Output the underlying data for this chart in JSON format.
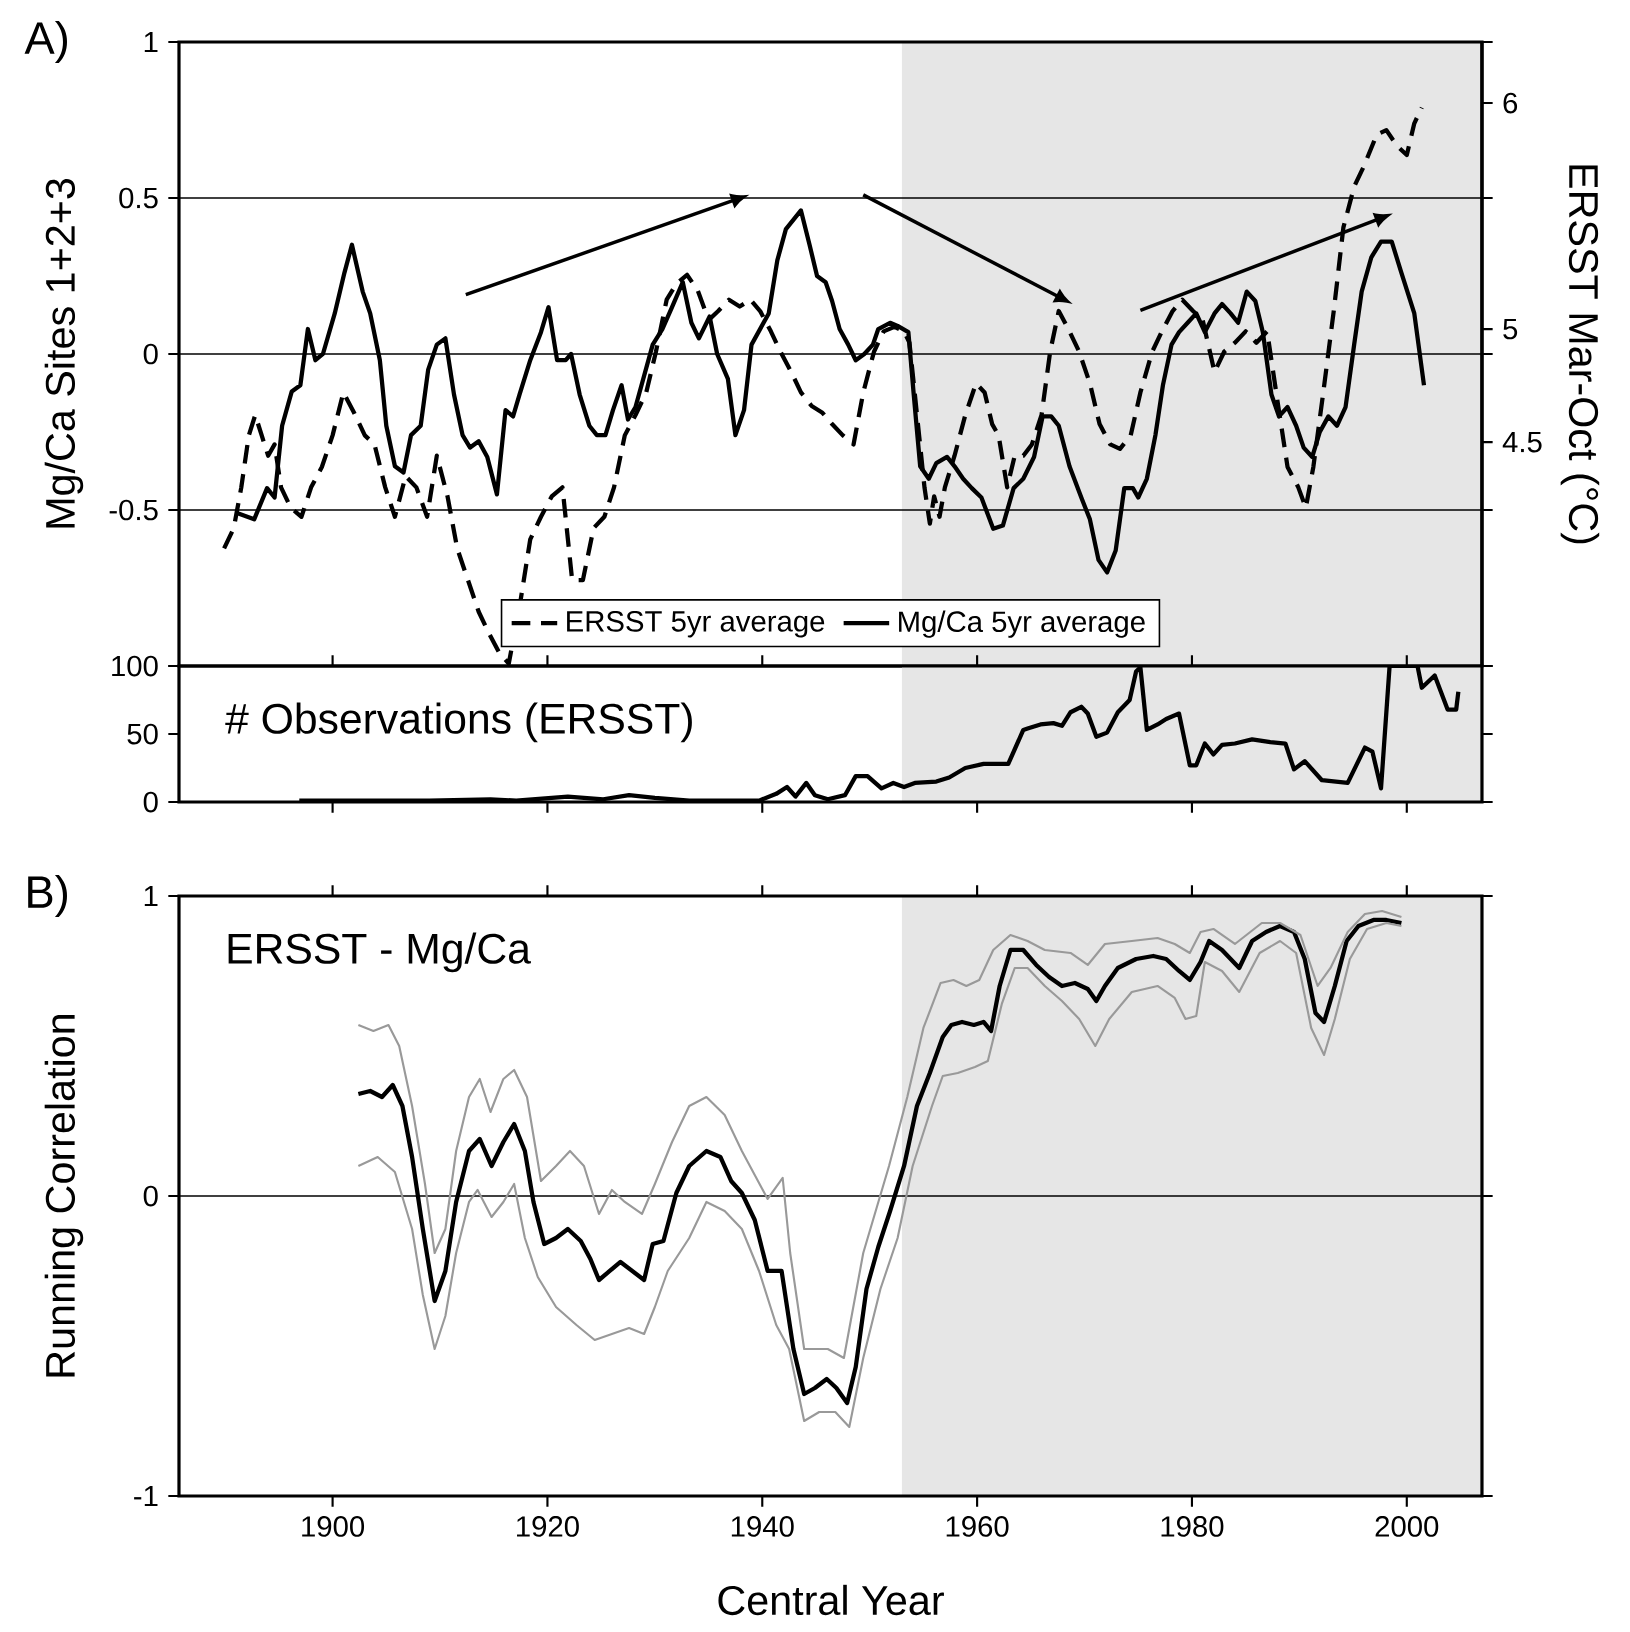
{
  "chart_data": [
    {
      "type": "line",
      "ylabel": "Mg/Ca Sites 1+2+3",
      "y2label": "ERSST Mar-Oct (°C)",
      "annotations": [
        "A)"
      ],
      "xlim": [
        1885.7,
        2007
      ],
      "ylim": [
        -1,
        1
      ],
      "yticks": [
        {
          "value": -1,
          "label": null
        },
        -0.5,
        0,
        0.5,
        1
      ],
      "y2lim": [
        3.51,
        6.27
      ],
      "y2ticks": [
        4.5,
        5,
        6
      ],
      "tick_labels": "y",
      "grid": "y",
      "legend": "bottom",
      "bands": [
        {
          "axis": "x",
          "from": 1953,
          "to": 2007,
          "color": "#e6e6e6"
        }
      ],
      "series": [
        {
          "name": "ERSST 5yr average",
          "color": "#000000",
          "axis": "y2",
          "line_style": "dashed",
          "x": [
            1889.9,
            1890.8,
            1891.5,
            1892.2,
            1892.8,
            1893.4,
            1894.0,
            1894.6,
            1895.2,
            1896.1,
            1897.1,
            1898.0,
            1899.0,
            1900.0,
            1901.0,
            1902.0,
            1903.0,
            1903.9,
            1904.9,
            1905.8,
            1906.8,
            1907.8,
            1908.8,
            1909.7,
            1910.7,
            1911.6,
            1912.6,
            1913.6,
            1914.5,
            1915.5,
            1916.4,
            1917.5,
            1918.4,
            1919.4,
            1920.4,
            1921.4,
            1922.3,
            1923.3,
            1924.3,
            1925.3,
            1926.2,
            1927.2,
            1928.2,
            1929.2,
            1930.1,
            1931.1,
            1932.0,
            1933.0,
            1934.0,
            1935.0,
            1935.9,
            1936.9,
            1937.9,
            1938.9,
            1939.8,
            1940.8,
            1941.7,
            1942.7,
            1943.6,
            1944.6,
            1945.6,
            1946.5,
            1947.5,
            1948.5,
            1949.4,
            1950.4,
            1951.3,
            1952.3,
            1953.2,
            1953.7,
            1954.1,
            1954.6,
            1955.1,
            1955.6,
            1956.0,
            1956.5,
            1957.0,
            1957.9,
            1958.9,
            1959.9,
            1960.7,
            1961.4,
            1962.0,
            1962.8,
            1963.5,
            1964.3,
            1965.1,
            1966.0,
            1966.8,
            1967.6,
            1968.6,
            1969.5,
            1970.5,
            1971.4,
            1972.4,
            1973.3,
            1974.3,
            1975.2,
            1976.3,
            1977.2,
            1978.2,
            1979.1,
            1980.1,
            1981.0,
            1982.1,
            1983.0,
            1984.0,
            1985.0,
            1986.0,
            1987.0,
            1988.0,
            1988.9,
            1989.9,
            1990.6,
            1991.3,
            1992.2,
            1993.2,
            1994.1,
            1995.1,
            1996.0,
            1997.2,
            1998.1,
            1999.1,
            2000.0,
            2000.7,
            2001.4
          ],
          "values": [
            4.03,
            4.12,
            4.3,
            4.53,
            4.62,
            4.53,
            4.44,
            4.49,
            4.3,
            4.21,
            4.17,
            4.3,
            4.39,
            4.53,
            4.72,
            4.63,
            4.53,
            4.49,
            4.3,
            4.17,
            4.35,
            4.3,
            4.17,
            4.44,
            4.26,
            4.03,
            3.89,
            3.75,
            3.66,
            3.57,
            3.52,
            3.8,
            4.07,
            4.17,
            4.26,
            4.3,
            3.89,
            3.89,
            4.12,
            4.17,
            4.3,
            4.53,
            4.62,
            4.72,
            4.9,
            5.13,
            5.2,
            5.24,
            5.17,
            5.04,
            5.08,
            5.13,
            5.1,
            5.13,
            5.08,
            4.99,
            4.9,
            4.81,
            4.72,
            4.66,
            4.63,
            4.58,
            4.53,
            4.49,
            4.72,
            4.9,
            4.99,
            5.01,
            4.99,
            4.94,
            4.76,
            4.53,
            4.3,
            4.14,
            4.26,
            4.17,
            4.3,
            4.44,
            4.62,
            4.76,
            4.72,
            4.58,
            4.53,
            4.3,
            4.44,
            4.44,
            4.49,
            4.62,
            4.9,
            5.08,
            4.99,
            4.9,
            4.76,
            4.58,
            4.49,
            4.47,
            4.53,
            4.72,
            4.9,
            4.99,
            5.08,
            5.13,
            5.08,
            5.04,
            4.81,
            4.9,
            4.94,
            4.99,
            4.94,
            4.99,
            4.67,
            4.39,
            4.3,
            4.21,
            4.39,
            4.71,
            5.08,
            5.45,
            5.63,
            5.72,
            5.86,
            5.88,
            5.81,
            5.77,
            5.91,
            5.98
          ]
        },
        {
          "name": "Mg/Ca 5yr average",
          "color": "#000000",
          "line_style": "solid",
          "x": [
            1891.1,
            1892.7,
            1893.9,
            1894.6,
            1895.3,
            1896.2,
            1897.0,
            1897.7,
            1898.4,
            1899.1,
            1900.2,
            1901.1,
            1901.8,
            1902.8,
            1903.5,
            1904.4,
            1905.0,
            1905.8,
            1906.6,
            1907.3,
            1908.2,
            1908.9,
            1909.7,
            1910.5,
            1911.3,
            1912.1,
            1912.8,
            1913.6,
            1914.4,
            1915.3,
            1916.1,
            1916.8,
            1917.4,
            1918.4,
            1919.4,
            1920.1,
            1920.9,
            1921.7,
            1922.2,
            1923.0,
            1923.9,
            1924.6,
            1925.4,
            1926.1,
            1926.9,
            1927.5,
            1928.2,
            1929.0,
            1929.8,
            1930.7,
            1931.6,
            1932.6,
            1933.4,
            1934.1,
            1935.1,
            1935.8,
            1936.8,
            1937.5,
            1938.3,
            1939.0,
            1939.8,
            1940.6,
            1941.4,
            1942.2,
            1943.6,
            1944.4,
            1945.1,
            1945.9,
            1946.5,
            1947.2,
            1948.0,
            1948.7,
            1949.5,
            1950.3,
            1950.8,
            1951.9,
            1952.6,
            1953.6,
            1954.1,
            1954.7,
            1955.5,
            1956.2,
            1957.2,
            1957.9,
            1958.7,
            1959.5,
            1960.4,
            1961.5,
            1962.4,
            1963.4,
            1964.3,
            1965.3,
            1966.1,
            1966.9,
            1967.6,
            1968.6,
            1969.7,
            1970.5,
            1971.3,
            1972.1,
            1972.9,
            1973.7,
            1974.5,
            1975.0,
            1975.8,
            1976.6,
            1977.3,
            1978.1,
            1978.8,
            1979.6,
            1980.4,
            1981.2,
            1982.1,
            1982.8,
            1983.6,
            1984.3,
            1985.1,
            1985.9,
            1986.6,
            1987.4,
            1988.1,
            1988.9,
            1989.7,
            1990.4,
            1991.2,
            1991.9,
            1992.7,
            1993.5,
            1994.3,
            1995.1,
            1995.8,
            1996.7,
            1997.6,
            1998.6,
            1999.5,
            2000.7,
            2001.6
          ],
          "values": [
            -0.51,
            -0.53,
            -0.43,
            -0.46,
            -0.23,
            -0.12,
            -0.1,
            0.08,
            -0.02,
            0.0,
            0.13,
            0.26,
            0.35,
            0.2,
            0.13,
            -0.02,
            -0.23,
            -0.36,
            -0.38,
            -0.26,
            -0.23,
            -0.05,
            0.03,
            0.05,
            -0.13,
            -0.26,
            -0.3,
            -0.28,
            -0.33,
            -0.45,
            -0.18,
            -0.2,
            -0.13,
            -0.02,
            0.07,
            0.15,
            -0.02,
            -0.02,
            0.0,
            -0.13,
            -0.23,
            -0.26,
            -0.26,
            -0.18,
            -0.1,
            -0.21,
            -0.17,
            -0.07,
            0.03,
            0.08,
            0.15,
            0.23,
            0.1,
            0.05,
            0.12,
            0.0,
            -0.08,
            -0.26,
            -0.18,
            0.03,
            0.08,
            0.13,
            0.3,
            0.4,
            0.46,
            0.35,
            0.25,
            0.23,
            0.17,
            0.08,
            0.03,
            -0.02,
            0.0,
            0.03,
            0.08,
            0.1,
            0.09,
            0.07,
            -0.13,
            -0.36,
            -0.4,
            -0.35,
            -0.33,
            -0.36,
            -0.4,
            -0.43,
            -0.46,
            -0.56,
            -0.55,
            -0.43,
            -0.4,
            -0.33,
            -0.2,
            -0.2,
            -0.23,
            -0.36,
            -0.46,
            -0.53,
            -0.66,
            -0.7,
            -0.63,
            -0.43,
            -0.43,
            -0.46,
            -0.4,
            -0.26,
            -0.1,
            0.03,
            0.07,
            0.1,
            0.13,
            0.07,
            0.13,
            0.16,
            0.13,
            0.1,
            0.2,
            0.17,
            0.07,
            -0.13,
            -0.2,
            -0.17,
            -0.23,
            -0.3,
            -0.33,
            -0.25,
            -0.2,
            -0.23,
            -0.17,
            0.03,
            0.2,
            0.31,
            0.36,
            0.36,
            0.26,
            0.13,
            -0.1
          ]
        }
      ]
    },
    {
      "type": "line",
      "title": "# Observations (ERSST)",
      "xlim": [
        1885.7,
        2007
      ],
      "xticks": [
        1900,
        1920,
        1940,
        1960,
        1980,
        2000
      ],
      "ylim": [
        0,
        100
      ],
      "yticks": [
        0,
        50,
        100
      ],
      "tick_labels": "y",
      "bands": [
        {
          "axis": "x",
          "from": 1953,
          "to": 2007,
          "color": "#e6e6e6"
        }
      ],
      "series": [
        {
          "color": "#000000",
          "x": [
            1896.9,
            1909.0,
            1914.7,
            1917.1,
            1921.9,
            1925.2,
            1927.6,
            1930.0,
            1933.2,
            1939.7,
            1941.3,
            1942.3,
            1943.1,
            1944.1,
            1944.9,
            1946.1,
            1947.7,
            1948.7,
            1949.8,
            1951.1,
            1952.2,
            1953.2,
            1954.2,
            1956.2,
            1957.4,
            1958.9,
            1960.6,
            1962.9,
            1964.3,
            1964.7,
            1965.9,
            1967.1,
            1967.9,
            1968.7,
            1969.7,
            1970.3,
            1971.1,
            1972.1,
            1973.1,
            1974.2,
            1974.8,
            1975.2,
            1975.8,
            1976.8,
            1977.6,
            1978.8,
            1979.8,
            1980.4,
            1981.2,
            1982.0,
            1982.8,
            1984.0,
            1985.6,
            1987.3,
            1988.7,
            1989.5,
            1990.5,
            1992.1,
            1994.5,
            1996.1,
            1996.8,
            1997.6,
            1998.4,
            2001.0,
            2001.4,
            2002.6,
            2003.8,
            2004.6,
            2004.8
          ],
          "values": [
            1,
            1,
            2,
            1,
            4,
            2,
            5,
            3,
            1,
            1,
            6,
            11,
            4,
            14,
            5,
            2,
            5,
            19,
            19,
            10,
            14,
            11,
            14,
            15,
            18,
            25,
            28,
            28,
            53,
            54,
            57,
            58,
            56,
            66,
            70,
            65,
            48,
            51,
            66,
            75,
            96,
            99,
            53,
            57,
            61,
            65,
            27,
            27,
            43,
            35,
            42,
            43,
            46,
            44,
            43,
            24,
            30,
            16,
            14,
            40,
            37,
            10,
            100,
            100,
            84,
            93,
            68,
            68,
            81
          ]
        }
      ]
    },
    {
      "type": "line",
      "title": "ERSST - Mg/Ca",
      "xlabel": "Central Year",
      "ylabel": "Running Correlation",
      "annotations": [
        "B)"
      ],
      "xlim": [
        1885.7,
        2007
      ],
      "xticks": [
        1900,
        1920,
        1940,
        1960,
        1980,
        2000
      ],
      "ylim": [
        -1,
        1
      ],
      "yticks": [
        -1,
        0,
        1
      ],
      "ref_lines": [
        {
          "axis": "y",
          "value": 0
        }
      ],
      "bands": [
        {
          "axis": "x",
          "from": 1953,
          "to": 2007,
          "color": "#e6e6e6"
        }
      ],
      "series": [
        {
          "color": "#000000",
          "x": [
            1902.4,
            1903.5,
            1904.6,
            1905.6,
            1906.5,
            1907.4,
            1908.4,
            1909.5,
            1910.5,
            1911.5,
            1912.7,
            1913.7,
            1914.8,
            1915.9,
            1916.9,
            1917.9,
            1918.7,
            1919.7,
            1920.8,
            1921.9,
            1923.1,
            1924.0,
            1924.8,
            1925.8,
            1926.8,
            1927.9,
            1929.0,
            1929.8,
            1930.8,
            1932.0,
            1933.2,
            1934.8,
            1936.1,
            1937.1,
            1938.1,
            1939.3,
            1940.5,
            1941.8,
            1942.9,
            1943.9,
            1944.9,
            1946.0,
            1946.9,
            1947.9,
            1948.7,
            1949.7,
            1950.8,
            1951.9,
            1953.2,
            1954.4,
            1955.6,
            1956.8,
            1957.6,
            1958.6,
            1959.7,
            1960.6,
            1961.3,
            1962.1,
            1963.1,
            1964.3,
            1965.5,
            1966.7,
            1967.9,
            1969.1,
            1970.3,
            1971.1,
            1971.9,
            1973.1,
            1974.8,
            1976.4,
            1977.6,
            1978.8,
            1979.8,
            1980.8,
            1981.6,
            1982.8,
            1984.4,
            1985.6,
            1986.9,
            1988.2,
            1989.5,
            1990.5,
            1991.5,
            1992.3,
            1993.3,
            1994.4,
            1995.5,
            1996.9,
            1998.1,
            1999.5
          ],
          "values": [
            0.34,
            0.35,
            0.33,
            0.37,
            0.3,
            0.13,
            -0.11,
            -0.35,
            -0.25,
            -0.02,
            0.15,
            0.19,
            0.1,
            0.18,
            0.24,
            0.15,
            -0.02,
            -0.16,
            -0.14,
            -0.11,
            -0.15,
            -0.21,
            -0.28,
            -0.25,
            -0.22,
            -0.25,
            -0.28,
            -0.16,
            -0.15,
            0.01,
            0.1,
            0.15,
            0.13,
            0.05,
            0.01,
            -0.08,
            -0.25,
            -0.25,
            -0.51,
            -0.66,
            -0.64,
            -0.61,
            -0.64,
            -0.69,
            -0.57,
            -0.31,
            -0.17,
            -0.05,
            0.1,
            0.3,
            0.41,
            0.53,
            0.57,
            0.58,
            0.57,
            0.58,
            0.55,
            0.7,
            0.82,
            0.82,
            0.77,
            0.73,
            0.7,
            0.71,
            0.69,
            0.65,
            0.7,
            0.76,
            0.79,
            0.8,
            0.79,
            0.75,
            0.72,
            0.78,
            0.85,
            0.82,
            0.76,
            0.85,
            0.88,
            0.9,
            0.88,
            0.79,
            0.61,
            0.58,
            0.7,
            0.85,
            0.9,
            0.92,
            0.92,
            0.91
          ]
        },
        {
          "color": "#999999",
          "x": [
            1902.4,
            1903.8,
            1905.2,
            1906.2,
            1907.4,
            1908.6,
            1909.5,
            1910.5,
            1911.5,
            1912.7,
            1913.7,
            1914.7,
            1915.9,
            1916.9,
            1918.1,
            1919.4,
            1920.8,
            1922.1,
            1923.4,
            1924.8,
            1926.0,
            1927.2,
            1928.8,
            1930.0,
            1931.6,
            1933.2,
            1934.8,
            1936.5,
            1938.1,
            1940.5,
            1941.9,
            1942.6,
            1943.9,
            1946.1,
            1947.6,
            1949.4,
            1951.8,
            1953.5,
            1955.0,
            1956.6,
            1957.8,
            1959.0,
            1960.2,
            1961.5,
            1963.1,
            1964.7,
            1966.3,
            1968.7,
            1970.3,
            1971.9,
            1974.4,
            1976.8,
            1978.4,
            1979.8,
            1980.8,
            1982.0,
            1984.0,
            1986.5,
            1988.2,
            1990.1,
            1991.7,
            1992.9,
            1994.5,
            1996.1,
            1997.7,
            1999.5
          ],
          "values": [
            0.57,
            0.55,
            0.57,
            0.5,
            0.3,
            0.04,
            -0.19,
            -0.11,
            0.15,
            0.33,
            0.39,
            0.28,
            0.39,
            0.42,
            0.33,
            0.05,
            0.1,
            0.15,
            0.1,
            -0.06,
            0.02,
            -0.02,
            -0.06,
            0.04,
            0.18,
            0.3,
            0.33,
            0.27,
            0.15,
            -0.01,
            0.06,
            -0.19,
            -0.51,
            -0.51,
            -0.54,
            -0.19,
            0.1,
            0.33,
            0.56,
            0.71,
            0.72,
            0.7,
            0.72,
            0.82,
            0.87,
            0.85,
            0.82,
            0.81,
            0.77,
            0.84,
            0.85,
            0.86,
            0.84,
            0.81,
            0.88,
            0.89,
            0.84,
            0.91,
            0.91,
            0.87,
            0.7,
            0.76,
            0.88,
            0.94,
            0.95,
            0.93
          ]
        },
        {
          "color": "#999999",
          "x": [
            1902.4,
            1904.2,
            1905.8,
            1907.4,
            1908.4,
            1909.5,
            1910.5,
            1911.5,
            1912.7,
            1913.5,
            1914.8,
            1915.9,
            1916.9,
            1917.9,
            1919.1,
            1920.8,
            1922.7,
            1924.4,
            1926.0,
            1927.6,
            1929.0,
            1930.0,
            1931.2,
            1933.2,
            1934.8,
            1936.5,
            1938.1,
            1939.7,
            1941.3,
            1942.5,
            1943.9,
            1945.3,
            1946.8,
            1948.1,
            1949.4,
            1951.0,
            1952.6,
            1954.0,
            1955.8,
            1956.8,
            1958.2,
            1959.8,
            1961.0,
            1962.3,
            1963.5,
            1964.7,
            1966.3,
            1967.9,
            1969.5,
            1971.0,
            1972.3,
            1974.4,
            1976.8,
            1978.4,
            1979.4,
            1980.4,
            1981.2,
            1982.8,
            1984.4,
            1986.3,
            1988.2,
            1989.7,
            1991.1,
            1992.3,
            1993.3,
            1994.7,
            1996.3,
            1998.1,
            1999.5
          ],
          "values": [
            0.1,
            0.13,
            0.08,
            -0.11,
            -0.33,
            -0.51,
            -0.4,
            -0.19,
            -0.02,
            0.02,
            -0.07,
            -0.02,
            0.04,
            -0.14,
            -0.27,
            -0.37,
            -0.43,
            -0.48,
            -0.46,
            -0.44,
            -0.46,
            -0.37,
            -0.25,
            -0.14,
            -0.02,
            -0.05,
            -0.11,
            -0.25,
            -0.43,
            -0.51,
            -0.75,
            -0.72,
            -0.72,
            -0.77,
            -0.54,
            -0.31,
            -0.14,
            0.1,
            0.3,
            0.4,
            0.41,
            0.43,
            0.45,
            0.64,
            0.76,
            0.76,
            0.7,
            0.65,
            0.59,
            0.5,
            0.59,
            0.68,
            0.7,
            0.66,
            0.59,
            0.6,
            0.78,
            0.75,
            0.68,
            0.81,
            0.85,
            0.81,
            0.56,
            0.47,
            0.59,
            0.79,
            0.89,
            0.91,
            0.9
          ]
        }
      ]
    }
  ]
}
